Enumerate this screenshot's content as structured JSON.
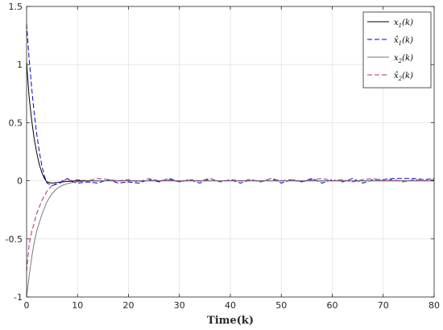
{
  "chart_data": {
    "type": "line",
    "title": "",
    "xlabel": "Time(k)",
    "ylabel": "",
    "xlim": [
      0,
      80
    ],
    "ylim": [
      -1,
      1.5
    ],
    "xticks": [
      "0",
      "10",
      "20",
      "30",
      "40",
      "50",
      "60",
      "70",
      "80"
    ],
    "yticks": [
      "-1",
      "-0.5",
      "0",
      "0.5",
      "1",
      "1.5"
    ],
    "grid": true,
    "legend_position": "top-right",
    "series": [
      {
        "name": "x1(k)",
        "legend_base": "x",
        "legend_sub": "1",
        "legend_suffix": "(k)",
        "legend_hat": false,
        "color": "#000000",
        "dash": "solid",
        "x": [
          0,
          0.5,
          1,
          1.5,
          2,
          2.5,
          3,
          3.5,
          4,
          5,
          6,
          7,
          8,
          10,
          15,
          20,
          30,
          40,
          50,
          60,
          70,
          80
        ],
        "y": [
          1.02,
          0.72,
          0.52,
          0.36,
          0.24,
          0.14,
          0.07,
          0.02,
          -0.01,
          -0.02,
          -0.015,
          -0.01,
          -0.005,
          0.0,
          0.0,
          0.0,
          0.0,
          0.0,
          0.0,
          0.0,
          0.0,
          0.0
        ]
      },
      {
        "name": "x̂1(k)",
        "legend_base": "x",
        "legend_sub": "1",
        "legend_suffix": "(k)",
        "legend_hat": true,
        "color": "#0000cc",
        "dash": "dashed",
        "x": [
          0,
          0.5,
          1,
          1.5,
          2,
          2.5,
          3,
          3.5,
          4,
          5,
          6,
          7,
          8,
          9,
          10,
          12,
          14,
          16,
          18,
          20,
          22,
          24,
          26,
          28,
          30,
          32,
          34,
          36,
          38,
          40,
          42,
          44,
          46,
          48,
          50,
          52,
          54,
          56,
          58,
          60,
          62,
          64,
          66,
          68,
          70,
          72,
          74,
          76,
          78,
          80
        ],
        "y": [
          1.35,
          1.05,
          0.8,
          0.58,
          0.4,
          0.25,
          0.13,
          0.04,
          -0.02,
          -0.04,
          -0.03,
          -0.01,
          0.02,
          -0.01,
          -0.02,
          -0.01,
          -0.02,
          0.01,
          -0.02,
          -0.01,
          -0.02,
          0.01,
          -0.01,
          0.02,
          -0.01,
          0.01,
          -0.02,
          0.02,
          -0.01,
          0.01,
          -0.02,
          0.01,
          -0.01,
          0.02,
          -0.02,
          0.01,
          -0.01,
          0.02,
          -0.02,
          0.01,
          -0.01,
          0.02,
          -0.02,
          0.01,
          0.01,
          0.02,
          0.02,
          0.02,
          0.01,
          0.02
        ]
      },
      {
        "name": "x2(k)",
        "legend_base": "x",
        "legend_sub": "2",
        "legend_suffix": "(k)",
        "legend_hat": false,
        "color": "#7a7a7a",
        "dash": "solid",
        "x": [
          0,
          0.5,
          1,
          1.5,
          2,
          3,
          4,
          5,
          6,
          7,
          8,
          9,
          10,
          12,
          15,
          20,
          30,
          40,
          50,
          60,
          70,
          80
        ],
        "y": [
          -1.0,
          -0.82,
          -0.66,
          -0.53,
          -0.43,
          -0.29,
          -0.18,
          -0.11,
          -0.065,
          -0.04,
          -0.025,
          -0.015,
          -0.008,
          -0.003,
          0.0,
          0.0,
          0.0,
          0.0,
          0.0,
          0.0,
          0.0,
          0.0
        ]
      },
      {
        "name": "x̂2(k)",
        "legend_base": "x",
        "legend_sub": "2",
        "legend_suffix": "(k)",
        "legend_hat": true,
        "color": "#a03080",
        "dash": "dashed",
        "x": [
          0,
          0.5,
          1,
          1.5,
          2,
          3,
          4,
          5,
          6,
          7,
          8,
          9,
          10,
          12,
          14,
          16,
          18,
          20,
          22,
          24,
          26,
          28,
          30,
          32,
          34,
          36,
          38,
          40,
          42,
          44,
          46,
          48,
          50,
          52,
          54,
          56,
          58,
          60,
          62,
          64,
          66,
          68,
          70,
          72,
          74,
          76,
          78,
          80
        ],
        "y": [
          -0.78,
          -0.55,
          -0.44,
          -0.36,
          -0.28,
          -0.17,
          -0.09,
          -0.04,
          -0.015,
          0.0,
          0.01,
          0.0,
          0.01,
          0.0,
          0.02,
          0.01,
          0.0,
          0.01,
          -0.01,
          0.02,
          0.0,
          0.01,
          -0.01,
          0.01,
          0.0,
          0.02,
          -0.01,
          0.01,
          0.0,
          0.01,
          -0.01,
          0.02,
          0.0,
          0.01,
          -0.01,
          0.01,
          0.02,
          0.0,
          0.01,
          -0.01,
          0.01,
          0.02,
          0.0,
          0.01,
          -0.01,
          0.01,
          0.0,
          0.01
        ]
      }
    ]
  }
}
